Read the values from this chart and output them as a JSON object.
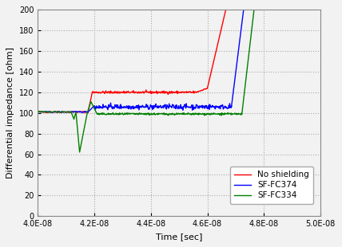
{
  "title": "",
  "xlabel": "Time [sec]",
  "ylabel": "Differential impedance [ohm]",
  "xlim": [
    4e-08,
    5e-08
  ],
  "ylim": [
    0,
    200
  ],
  "yticks": [
    0,
    20,
    40,
    60,
    80,
    100,
    120,
    140,
    160,
    180,
    200
  ],
  "xtick_vals": [
    4e-08,
    4.2e-08,
    4.4e-08,
    4.6e-08,
    4.8e-08,
    5e-08
  ],
  "xtick_labels": [
    "4.0E-08",
    "4.2E-08",
    "4.4E-08",
    "4.6E-08",
    "4.8E-08",
    "5.0E-08"
  ],
  "legend": [
    "No shielding",
    "SF-FC374",
    "SF-FC334"
  ],
  "colors": [
    "#ff0000",
    "#0000ff",
    "#008000"
  ],
  "line_width": 1.0,
  "plot_bg_color": "#f2f2f2",
  "fig_bg_color": "#f2f2f2",
  "grid_color": "#aaaaaa",
  "tick_label_fontsize": 7,
  "axis_label_fontsize": 8,
  "legend_fontsize": 7.5
}
